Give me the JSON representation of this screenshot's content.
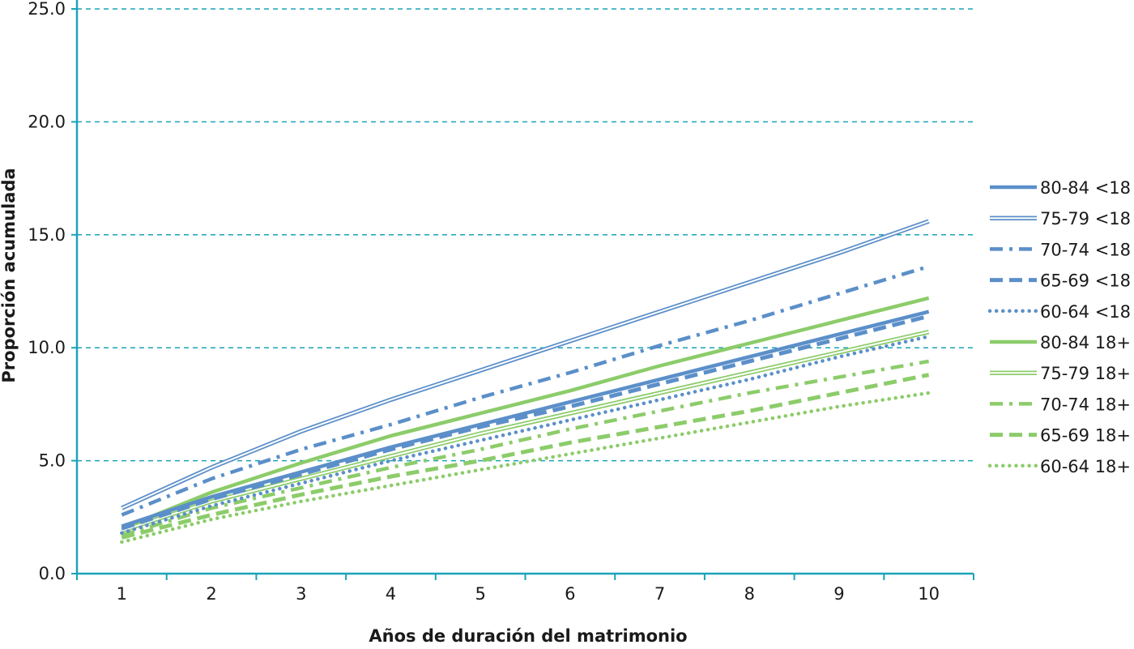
{
  "chart_data": {
    "type": "line",
    "xlabel": "Años de duración del matrimonio",
    "ylabel": "Proporción acumulada",
    "categories": [
      "1",
      "2",
      "3",
      "4",
      "5",
      "6",
      "7",
      "8",
      "9",
      "10"
    ],
    "y_ticks": [
      "0.0",
      "5.0",
      "10.0",
      "15.0",
      "20.0",
      "25.0"
    ],
    "ylim": [
      0,
      25
    ],
    "grid": "horizontal dashed",
    "legend_position": "right",
    "colors": {
      "blue": "#5b8fc9",
      "green": "#8ccc6a",
      "axis": "#1aa3b8"
    },
    "series": [
      {
        "name": "80-84 <18",
        "color": "blue",
        "style": "solid-thick",
        "values": [
          2.1,
          3.4,
          4.5,
          5.6,
          6.6,
          7.6,
          8.6,
          9.6,
          10.6,
          11.6
        ]
      },
      {
        "name": "75-79 <18",
        "color": "blue",
        "style": "double",
        "values": [
          2.9,
          4.7,
          6.3,
          7.7,
          9.0,
          10.3,
          11.6,
          12.9,
          14.2,
          15.6
        ]
      },
      {
        "name": "70-74 <18",
        "color": "blue",
        "style": "dash-dot",
        "values": [
          2.6,
          4.2,
          5.5,
          6.6,
          7.8,
          8.9,
          10.1,
          11.2,
          12.4,
          13.6
        ]
      },
      {
        "name": "65-69 <18",
        "color": "blue",
        "style": "dash",
        "values": [
          2.0,
          3.3,
          4.4,
          5.5,
          6.5,
          7.4,
          8.4,
          9.4,
          10.4,
          11.4
        ]
      },
      {
        "name": "60-64 <18",
        "color": "blue",
        "style": "dot",
        "values": [
          1.8,
          3.0,
          4.0,
          5.0,
          5.9,
          6.8,
          7.7,
          8.6,
          9.6,
          10.5
        ]
      },
      {
        "name": "80-84 18+",
        "color": "green",
        "style": "solid-thick",
        "values": [
          2.0,
          3.6,
          4.9,
          6.1,
          7.1,
          8.1,
          9.2,
          10.2,
          11.2,
          12.2
        ]
      },
      {
        "name": "75-79 18+",
        "color": "green",
        "style": "double",
        "values": [
          1.9,
          3.2,
          4.2,
          5.2,
          6.2,
          7.1,
          8.0,
          8.9,
          9.8,
          10.7
        ]
      },
      {
        "name": "70-74 18+",
        "color": "green",
        "style": "dash-dot",
        "values": [
          1.7,
          2.9,
          3.8,
          4.7,
          5.5,
          6.4,
          7.2,
          8.0,
          8.7,
          9.4
        ]
      },
      {
        "name": "65-69 18+",
        "color": "green",
        "style": "dash",
        "values": [
          1.6,
          2.6,
          3.5,
          4.3,
          5.0,
          5.8,
          6.5,
          7.2,
          8.0,
          8.8
        ]
      },
      {
        "name": "60-64 18+",
        "color": "green",
        "style": "dot",
        "values": [
          1.4,
          2.4,
          3.2,
          3.9,
          4.6,
          5.3,
          6.0,
          6.7,
          7.4,
          8.0
        ]
      }
    ]
  }
}
